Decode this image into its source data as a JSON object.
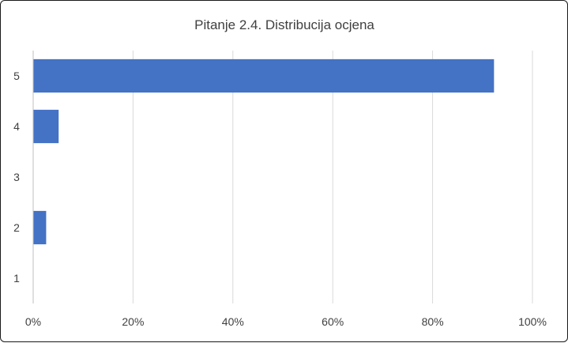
{
  "chart_data": {
    "type": "bar",
    "orientation": "horizontal",
    "title": "Pitanje 2.4. Distribucija ocjena",
    "categories": [
      "5",
      "4",
      "3",
      "2",
      "1"
    ],
    "values": [
      92.3,
      5.1,
      0,
      2.6,
      0
    ],
    "xlim": [
      0,
      100
    ],
    "x_ticks": [
      "0%",
      "20%",
      "40%",
      "60%",
      "80%",
      "100%"
    ],
    "xlabel": "",
    "ylabel": "",
    "grid": true,
    "legend": "none",
    "bar_color": "#4472C4"
  }
}
